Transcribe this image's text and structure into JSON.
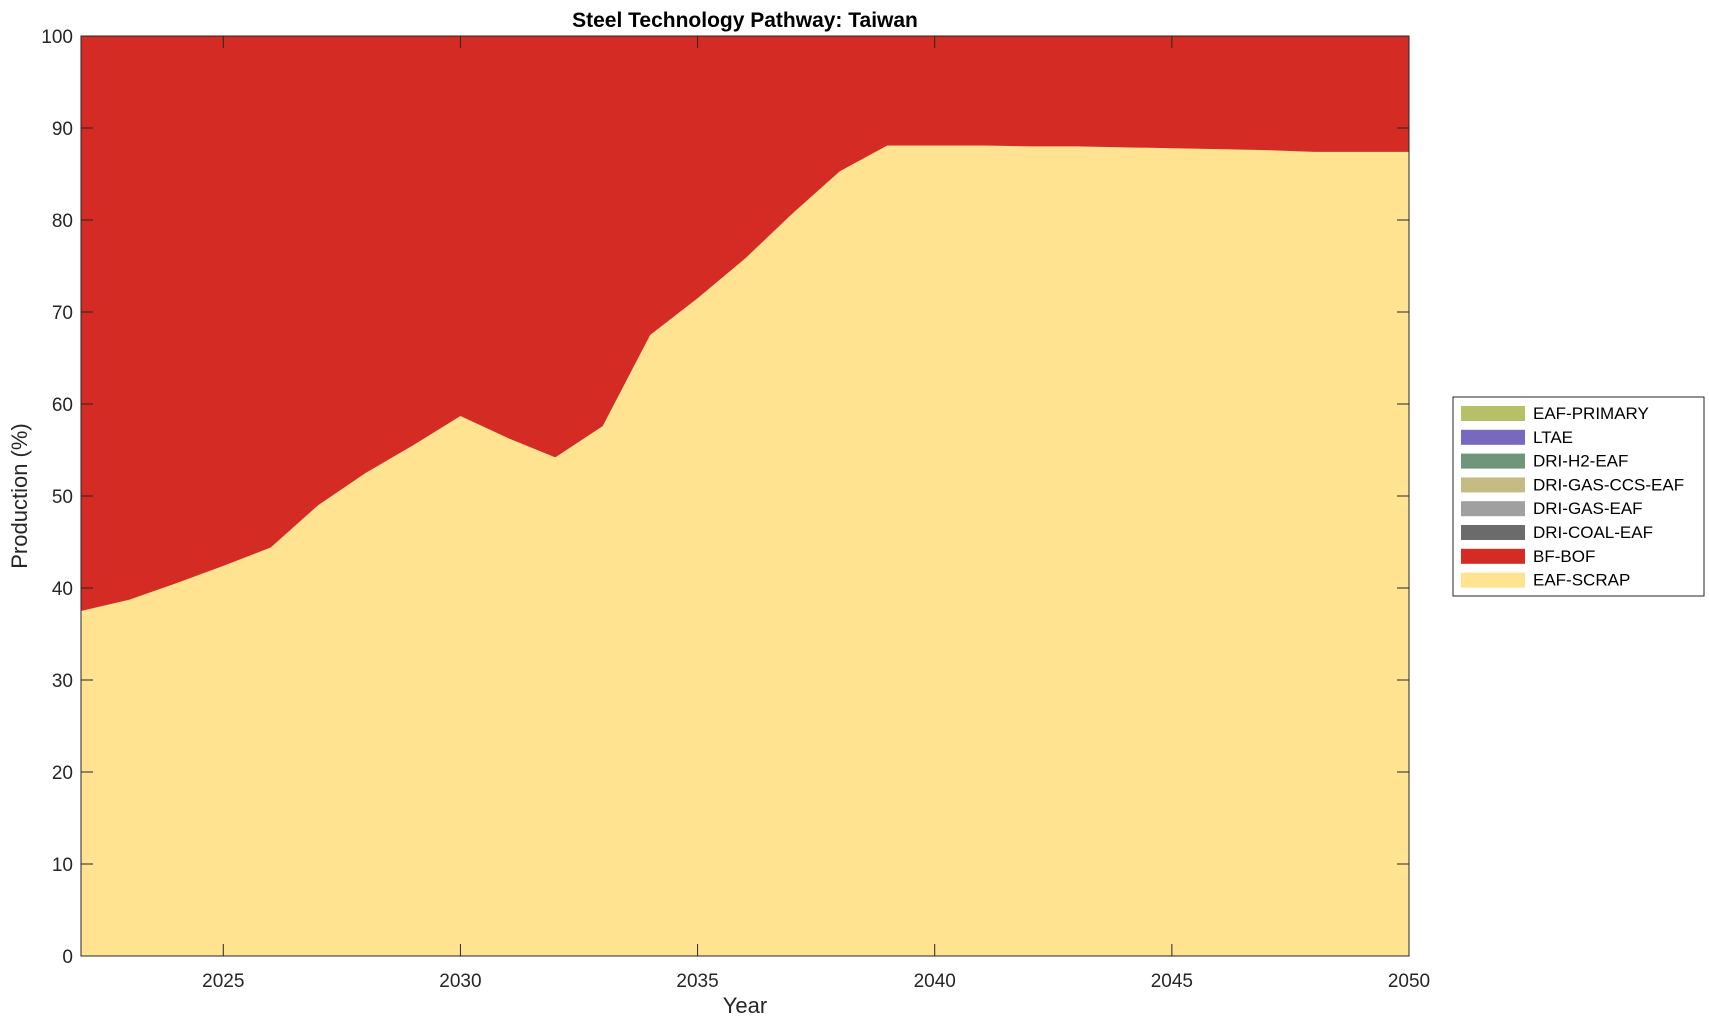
{
  "chart_data": {
    "type": "area",
    "stacked": true,
    "title": "Steel Technology Pathway: Taiwan",
    "xlabel": "Year",
    "ylabel": "Production (%)",
    "xlim": [
      2022,
      2050
    ],
    "ylim": [
      0,
      100
    ],
    "xticks": [
      2025,
      2030,
      2035,
      2040,
      2045,
      2050
    ],
    "yticks": [
      0,
      10,
      20,
      30,
      40,
      50,
      60,
      70,
      80,
      90,
      100
    ],
    "grid": false,
    "legend_position": "right",
    "x": [
      2022,
      2023,
      2024,
      2025,
      2026,
      2027,
      2028,
      2029,
      2030,
      2031,
      2032,
      2033,
      2034,
      2035,
      2036,
      2037,
      2038,
      2039,
      2040,
      2041,
      2042,
      2043,
      2044,
      2045,
      2046,
      2047,
      2048,
      2049,
      2050
    ],
    "series": [
      {
        "name": "EAF-SCRAP",
        "color": "#FFE391",
        "values": [
          37.5,
          38.7,
          40.5,
          42.4,
          44.4,
          49.0,
          52.5,
          55.5,
          58.7,
          56.3,
          54.2,
          57.6,
          67.5,
          71.5,
          75.8,
          80.7,
          85.3,
          88.1,
          88.1,
          88.1,
          88.0,
          88.0,
          87.9,
          87.8,
          87.7,
          87.6,
          87.4,
          87.4,
          87.4
        ]
      },
      {
        "name": "BF-BOF",
        "color": "#D42B24",
        "values": [
          62.5,
          61.3,
          59.5,
          57.6,
          55.6,
          51.0,
          47.5,
          44.5,
          41.3,
          43.7,
          45.8,
          42.4,
          32.5,
          28.5,
          24.2,
          19.3,
          14.7,
          11.9,
          11.9,
          11.9,
          12.0,
          12.0,
          12.1,
          12.2,
          12.3,
          12.4,
          12.6,
          12.6,
          12.6
        ]
      },
      {
        "name": "DRI-COAL-EAF",
        "color": "#6B6B6B",
        "values": [
          0,
          0,
          0,
          0,
          0,
          0,
          0,
          0,
          0,
          0,
          0,
          0,
          0,
          0,
          0,
          0,
          0,
          0,
          0,
          0,
          0,
          0,
          0,
          0,
          0,
          0,
          0,
          0,
          0
        ]
      },
      {
        "name": "DRI-GAS-EAF",
        "color": "#A0A0A0",
        "values": [
          0,
          0,
          0,
          0,
          0,
          0,
          0,
          0,
          0,
          0,
          0,
          0,
          0,
          0,
          0,
          0,
          0,
          0,
          0,
          0,
          0,
          0,
          0,
          0,
          0,
          0,
          0,
          0,
          0
        ]
      },
      {
        "name": "DRI-GAS-CCS-EAF",
        "color": "#C4BC84",
        "values": [
          0,
          0,
          0,
          0,
          0,
          0,
          0,
          0,
          0,
          0,
          0,
          0,
          0,
          0,
          0,
          0,
          0,
          0,
          0,
          0,
          0,
          0,
          0,
          0,
          0,
          0,
          0,
          0,
          0
        ]
      },
      {
        "name": "DRI-H2-EAF",
        "color": "#6F967A",
        "values": [
          0,
          0,
          0,
          0,
          0,
          0,
          0,
          0,
          0,
          0,
          0,
          0,
          0,
          0,
          0,
          0,
          0,
          0,
          0,
          0,
          0,
          0,
          0,
          0,
          0,
          0,
          0,
          0,
          0
        ]
      },
      {
        "name": "LTAE",
        "color": "#7669BE",
        "values": [
          0,
          0,
          0,
          0,
          0,
          0,
          0,
          0,
          0,
          0,
          0,
          0,
          0,
          0,
          0,
          0,
          0,
          0,
          0,
          0,
          0,
          0,
          0,
          0,
          0,
          0,
          0,
          0,
          0
        ]
      },
      {
        "name": "EAF-PRIMARY",
        "color": "#B8C067",
        "values": [
          0,
          0,
          0,
          0,
          0,
          0,
          0,
          0,
          0,
          0,
          0,
          0,
          0,
          0,
          0,
          0,
          0,
          0,
          0,
          0,
          0,
          0,
          0,
          0,
          0,
          0,
          0,
          0,
          0
        ]
      }
    ],
    "legend_order": [
      "EAF-PRIMARY",
      "LTAE",
      "DRI-H2-EAF",
      "DRI-GAS-CCS-EAF",
      "DRI-GAS-EAF",
      "DRI-COAL-EAF",
      "BF-BOF",
      "EAF-SCRAP"
    ]
  }
}
